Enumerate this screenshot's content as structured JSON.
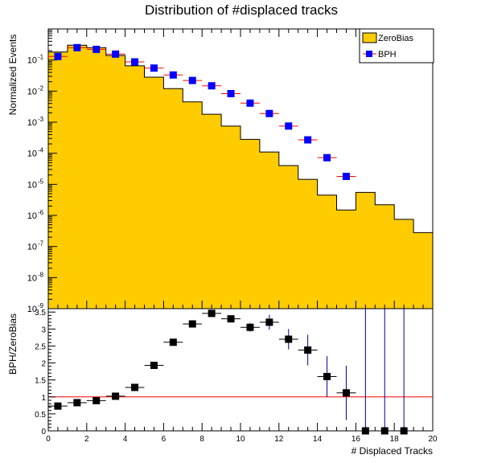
{
  "colors": {
    "zerobias_fill": "#ffcc00",
    "bph_marker": "#0000ff",
    "bph_error": "#ff0000",
    "ratio_marker": "#000000",
    "ratio_error": "#000099",
    "reference_line": "#ff0000"
  },
  "chart_data": [
    {
      "type": "histogram",
      "title": "Distribution of #displaced tracks",
      "xlabel": "",
      "ylabel": "Normalized Events",
      "yscale": "log",
      "xlim": [
        0,
        20
      ],
      "ylim_exponents": [
        -9,
        0
      ],
      "y_tick_labels": [
        "10",
        "10",
        "10",
        "10",
        "10",
        "10",
        "10",
        "10",
        "10"
      ],
      "y_tick_exponents": [
        "-1",
        "-2",
        "-3",
        "-4",
        "-5",
        "-6",
        "-7",
        "-8",
        "-9"
      ],
      "legend_position": "top-right",
      "legend": [
        {
          "name": "ZeroBias",
          "style": "filled-box"
        },
        {
          "name": "BPH",
          "style": "marker"
        }
      ],
      "bin_edges": [
        0,
        1,
        2,
        3,
        4,
        5,
        6,
        7,
        8,
        9,
        10,
        11,
        12,
        13,
        14,
        15,
        16,
        17,
        18,
        19,
        20
      ],
      "series": [
        {
          "name": "ZeroBias",
          "style": "filled-histogram",
          "values": [
            0.18,
            0.3,
            0.25,
            0.14,
            0.065,
            0.028,
            0.012,
            0.0045,
            0.0018,
            0.00075,
            0.00028,
            0.00011,
            4e-05,
            1.45e-05,
            4.5e-06,
            1.5e-06,
            5.5e-06,
            2.2e-06,
            7.5e-07,
            2.8e-07
          ]
        },
        {
          "name": "BPH",
          "style": "markers",
          "x": [
            0.5,
            1.5,
            2.5,
            3.5,
            4.5,
            5.5,
            6.5,
            7.5,
            8.5,
            9.5,
            10.5,
            11.5,
            12.5,
            13.5,
            14.5,
            15.5
          ],
          "values": [
            0.13,
            0.25,
            0.22,
            0.155,
            0.087,
            0.055,
            0.033,
            0.022,
            0.0148,
            0.0083,
            0.0041,
            0.0019,
            0.00075,
            0.00027,
            7.2e-05,
            1.8e-05
          ]
        }
      ]
    },
    {
      "type": "scatter",
      "xlabel": "# Displaced Tracks",
      "ylabel": "BPH/ZeroBias",
      "xlim": [
        0,
        20
      ],
      "ylim": [
        0,
        3.6
      ],
      "x_ticks": [
        0,
        2,
        4,
        6,
        8,
        10,
        12,
        14,
        16,
        18,
        20
      ],
      "x_tick_labels": [
        "0",
        "2",
        "4",
        "6",
        "8",
        "10",
        "12",
        "14",
        "16",
        "18",
        "20"
      ],
      "y_ticks": [
        0,
        0.5,
        1,
        1.5,
        2,
        2.5,
        3,
        3.5
      ],
      "y_tick_labels": [
        "0",
        "0.5",
        "1",
        "1.5",
        "2",
        "2.5",
        "3",
        "3.5"
      ],
      "reference_line": 1,
      "series": [
        {
          "name": "BPH/ZeroBias",
          "x": [
            0.5,
            1.5,
            2.5,
            3.5,
            4.5,
            5.5,
            6.5,
            7.5,
            8.5,
            9.5,
            10.5,
            11.5,
            12.5,
            13.5,
            14.5,
            15.5,
            16.5,
            17.5,
            18.5
          ],
          "values": [
            0.73,
            0.83,
            0.89,
            1.02,
            1.28,
            1.93,
            2.61,
            3.15,
            3.46,
            3.3,
            3.05,
            3.2,
            2.7,
            2.38,
            1.6,
            1.12,
            0.0,
            0.0,
            0.0
          ],
          "errors": [
            0.03,
            0.03,
            0.03,
            0.04,
            0.05,
            0.05,
            0.06,
            0.07,
            0.08,
            0.1,
            0.13,
            0.22,
            0.3,
            0.45,
            0.6,
            0.8,
            3.6,
            3.6,
            3.6
          ]
        }
      ]
    }
  ]
}
